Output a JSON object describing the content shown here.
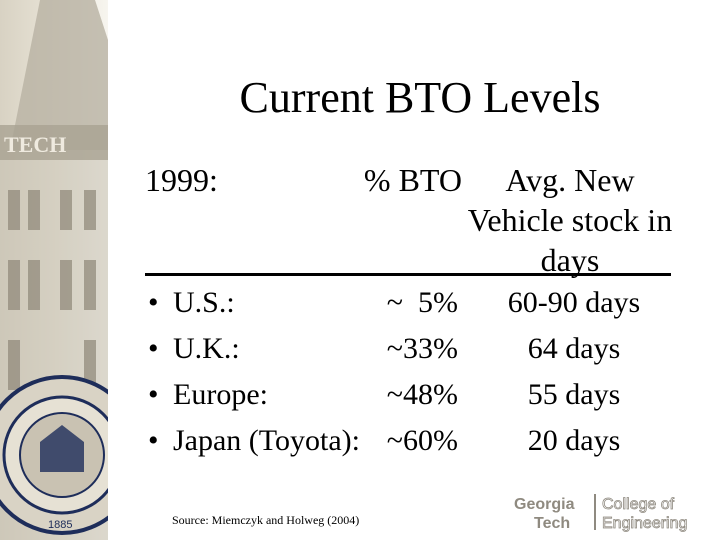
{
  "title": "Current BTO Levels",
  "header": {
    "year": "1999:",
    "pct_bto": "% BTO",
    "avg_stock": [
      "Avg. New",
      "Vehicle stock in",
      "days"
    ]
  },
  "rows": [
    {
      "bullet": "•",
      "region": "U.S.:",
      "bto": "~  5%",
      "days": "60-90 days"
    },
    {
      "bullet": "•",
      "region": "U.K.:",
      "bto": "~33%",
      "days": "64 days"
    },
    {
      "bullet": "•",
      "region": "Europe:",
      "bto": "~48%",
      "days": "55 days"
    },
    {
      "bullet": "•",
      "region": "Japan (Toyota):",
      "bto": "~60%",
      "days": "20 days"
    }
  ],
  "source": "Source: Miemczyk and Holweg (2004)",
  "logo": {
    "left_line1": "Georgia",
    "left_line2": "Tech",
    "right_line1": "College of",
    "right_line2": "Engineering"
  },
  "background_image": {
    "tower_text": "TECH",
    "seal_year": "1885"
  },
  "colors": {
    "sidebar": "#e3ddcf",
    "logo": "#8f8a80"
  }
}
